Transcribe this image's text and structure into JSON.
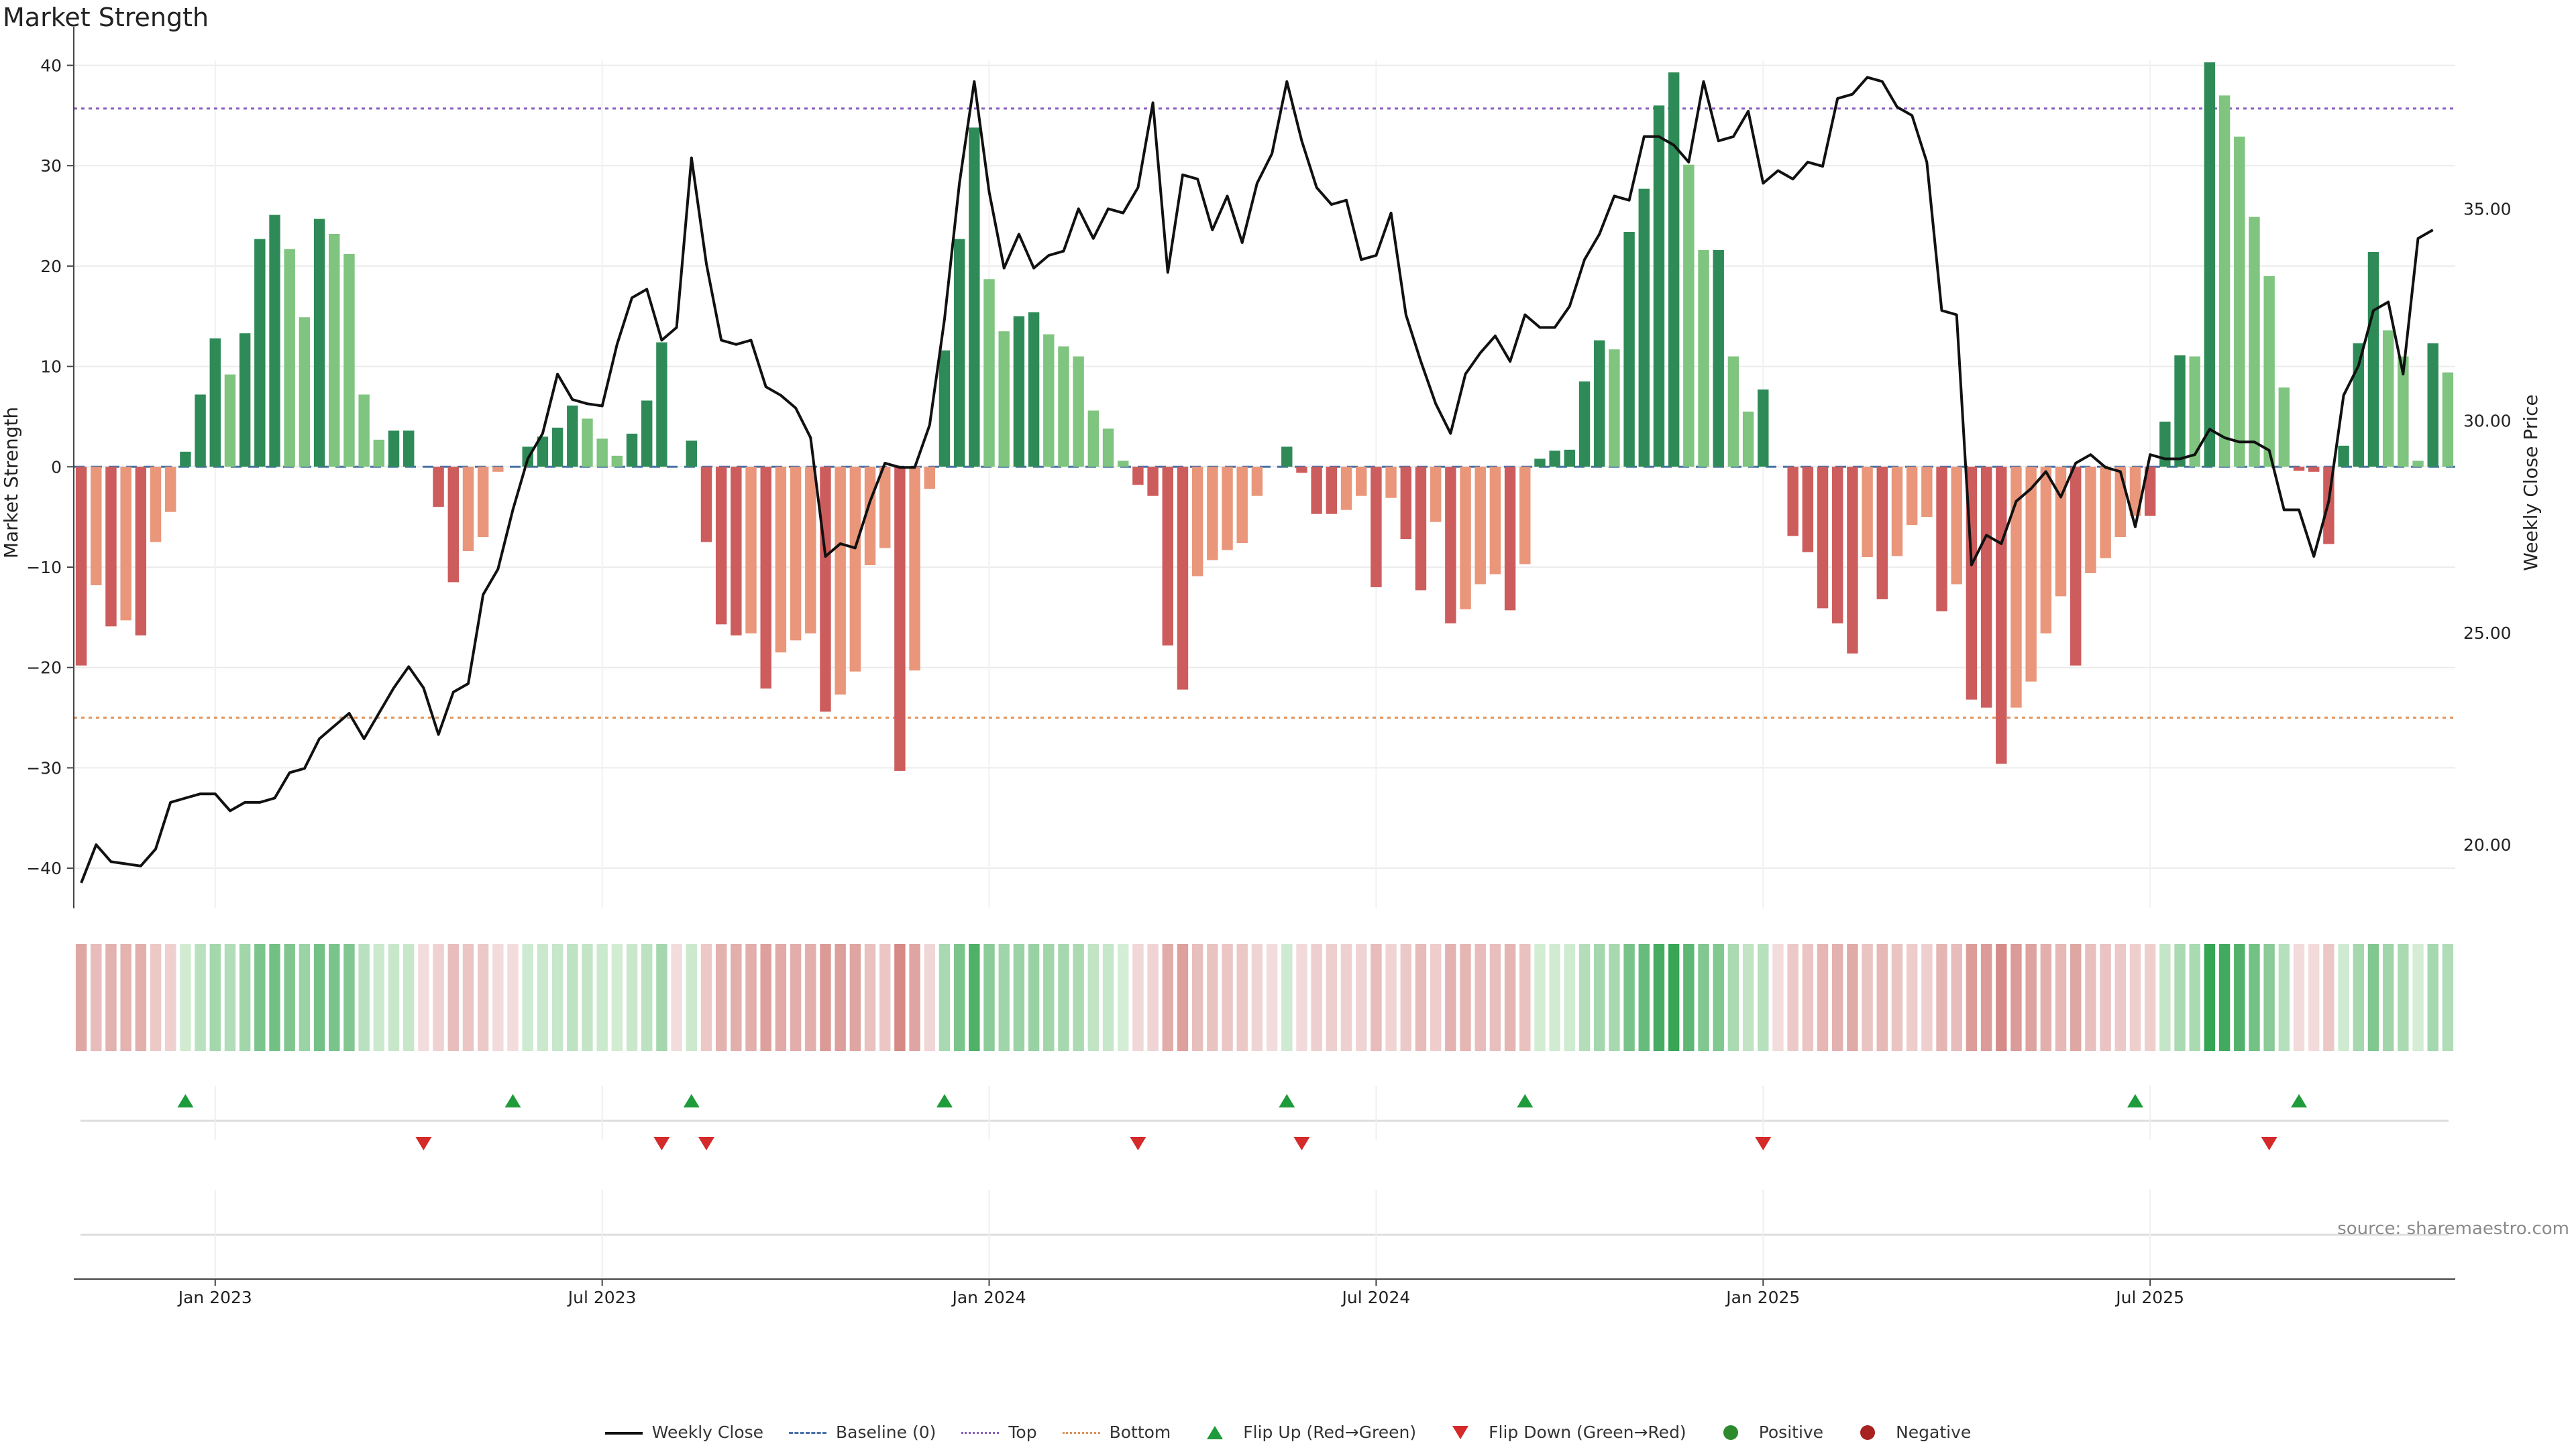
{
  "chart_data": {
    "type": "bar",
    "title": "Market Strength",
    "ylabel": "Market Strength",
    "ylabel_right": "Weekly Close Price",
    "ylim": [
      -44,
      40.5
    ],
    "y_ticks": [
      -40,
      -30,
      -20,
      -10,
      0,
      10,
      20,
      30,
      40
    ],
    "y2lim": [
      18.5,
      38.5
    ],
    "y2_ticks": [
      "20.00",
      "25.00",
      "30.00",
      "35.00"
    ],
    "x_ticks": [
      "Jan 2023",
      "Jul 2023",
      "Jan 2024",
      "Jul 2024",
      "Jan 2025",
      "Jul 2025"
    ],
    "x_tick_index": [
      9,
      35,
      61,
      87,
      113,
      139
    ],
    "top_line": 35.7,
    "bottom_line": -25,
    "grid": true,
    "legend_placement": "bottom-center",
    "colors": {
      "positive_strong": "#2e8b57",
      "positive_weak": "#7fc47f",
      "negative_strong": "#cd5c5c",
      "negative_weak": "#e9967a",
      "price_line": "#111111",
      "top_line": "#8a5fbf",
      "bottom_line": "#e0935a",
      "flip_up": "#1e9b3a",
      "flip_down": "#d52a2a"
    },
    "strength": [
      -19.8,
      -11.8,
      -15.9,
      -15.3,
      -16.8,
      -7.5,
      -4.5,
      1.5,
      7.2,
      12.8,
      9.2,
      13.3,
      22.7,
      25.1,
      21.7,
      14.9,
      24.7,
      23.2,
      21.2,
      7.2,
      2.7,
      3.6,
      3.6,
      0,
      -4.0,
      -11.5,
      -8.4,
      -7.0,
      -0.5,
      0,
      2.0,
      3.0,
      3.9,
      6.1,
      4.8,
      2.8,
      1.1,
      3.3,
      6.6,
      12.4,
      0,
      2.6,
      -7.5,
      -15.7,
      -16.8,
      -16.6,
      -22.1,
      -18.5,
      -17.3,
      -16.6,
      -24.4,
      -22.7,
      -20.4,
      -9.8,
      -8.1,
      -30.3,
      -20.3,
      -2.2,
      11.6,
      22.7,
      33.8,
      18.7,
      13.5,
      15.0,
      15.4,
      13.2,
      12.0,
      11.0,
      5.6,
      3.8,
      0.6,
      -1.8,
      -2.9,
      -17.8,
      -22.2,
      -10.9,
      -9.3,
      -8.3,
      -7.6,
      -2.9,
      0,
      2.0,
      -0.6,
      -4.7,
      -4.7,
      -4.3,
      -2.9,
      -12.0,
      -3.1,
      -7.2,
      -12.3,
      -5.5,
      -15.6,
      -14.2,
      -11.7,
      -10.7,
      -14.3,
      -9.7,
      0.8,
      1.6,
      1.7,
      8.5,
      12.6,
      11.7,
      23.4,
      27.7,
      36.0,
      39.3,
      30.1,
      21.6,
      21.6,
      11.0,
      5.5,
      7.7,
      0,
      -6.9,
      -8.5,
      -14.1,
      -15.6,
      -18.6,
      -9.0,
      -13.2,
      -8.9,
      -5.8,
      -5.0,
      -14.4,
      -11.7,
      -23.2,
      -24.0,
      -29.6,
      -24.0,
      -21.4,
      -16.6,
      -12.9,
      -19.8,
      -10.6,
      -9.1,
      -7.0,
      -4.9,
      -4.9,
      4.5,
      11.1,
      11.0,
      40.3,
      37.0,
      32.9,
      24.9,
      19.0,
      7.9,
      -0.4,
      -0.5,
      -7.7,
      2.1,
      12.3,
      21.4,
      13.6,
      11.0,
      0.6,
      12.3,
      9.4
    ],
    "price": [
      19.1,
      20.0,
      19.6,
      19.55,
      19.5,
      19.9,
      21.0,
      21.1,
      21.2,
      21.2,
      20.8,
      21.0,
      21.0,
      21.1,
      21.7,
      21.8,
      22.5,
      22.8,
      23.1,
      22.5,
      23.1,
      23.7,
      24.2,
      23.7,
      22.6,
      23.6,
      23.8,
      25.9,
      26.5,
      27.9,
      29.1,
      29.7,
      31.1,
      30.5,
      30.4,
      30.35,
      31.8,
      32.9,
      33.1,
      31.9,
      32.2,
      36.2,
      33.7,
      31.9,
      31.8,
      31.9,
      30.8,
      30.6,
      30.3,
      29.6,
      26.8,
      27.1,
      27.0,
      28.1,
      29.0,
      28.9,
      28.9,
      29.9,
      32.4,
      35.6,
      38.0,
      35.4,
      33.6,
      34.4,
      33.6,
      33.9,
      34.0,
      35.0,
      34.3,
      35.0,
      34.9,
      35.5,
      37.5,
      33.5,
      35.8,
      35.7,
      34.5,
      35.3,
      34.2,
      35.6,
      36.3,
      38.0,
      36.6,
      35.5,
      35.1,
      35.2,
      33.8,
      33.9,
      34.9,
      32.5,
      31.4,
      30.4,
      29.7,
      31.1,
      31.6,
      32.0,
      31.4,
      32.5,
      32.2,
      32.2,
      32.7,
      33.8,
      34.4,
      35.3,
      35.2,
      36.7,
      36.7,
      36.5,
      36.1,
      38.0,
      36.6,
      36.7,
      37.3,
      35.6,
      35.9,
      35.7,
      36.1,
      36.0,
      37.6,
      37.7,
      38.1,
      38.0,
      37.4,
      37.2,
      36.1,
      32.6,
      32.5,
      26.6,
      27.3,
      27.1,
      28.1,
      28.4,
      28.8,
      28.2,
      29.0,
      29.2,
      28.9,
      28.8,
      27.5,
      29.2,
      29.1,
      29.1,
      29.2,
      29.8,
      29.6,
      29.5,
      29.5,
      29.3,
      27.9,
      27.9,
      26.8,
      28.1,
      30.6,
      31.3,
      32.6,
      32.8,
      31.1,
      34.3,
      34.5
    ],
    "flip_up_index": [
      7,
      29,
      41,
      58,
      81,
      97,
      138,
      149
    ],
    "flip_down_index": [
      23,
      39,
      42,
      71,
      82,
      113,
      147
    ]
  },
  "legend": {
    "weekly_close": "Weekly Close",
    "baseline": "Baseline (0)",
    "top": "Top",
    "bottom": "Bottom",
    "flip_up": "Flip Up (Red→Green)",
    "flip_down": "Flip Down (Green→Red)",
    "positive": "Positive",
    "negative": "Negative"
  },
  "source": "source: sharemaestro.com"
}
